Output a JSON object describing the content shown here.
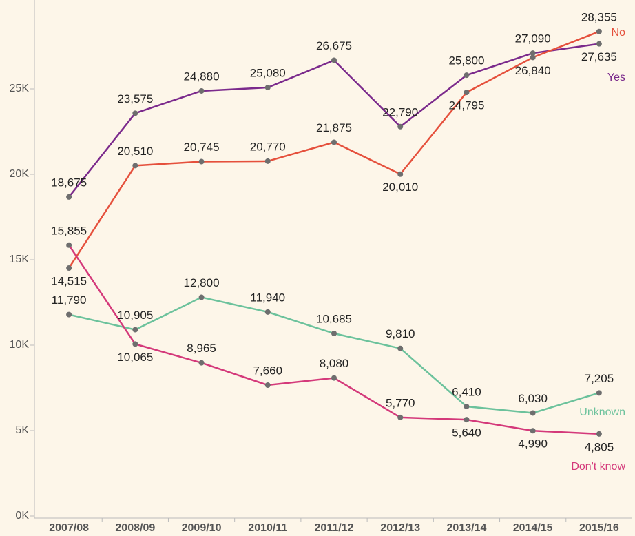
{
  "chart_data": {
    "type": "line",
    "categories": [
      "2007/08",
      "2008/09",
      "2009/10",
      "2010/11",
      "2011/12",
      "2012/13",
      "2013/14",
      "2014/15",
      "2015/16"
    ],
    "ylim": [
      0,
      30000
    ],
    "yticks": [
      {
        "value": 0,
        "label": "0K"
      },
      {
        "value": 5000,
        "label": "5K"
      },
      {
        "value": 10000,
        "label": "10K"
      },
      {
        "value": 15000,
        "label": "15K"
      },
      {
        "value": 20000,
        "label": "20K"
      },
      {
        "value": 25000,
        "label": "25K"
      }
    ],
    "marker_color": "#6e6e6e",
    "series": [
      {
        "name": "Yes",
        "color": "#7b2a8c",
        "values": [
          18675,
          23575,
          24880,
          25080,
          26675,
          22790,
          25800,
          27090,
          27635
        ],
        "value_labels": [
          "18,675",
          "23,575",
          "24,880",
          "25,080",
          "26,675",
          "22,790",
          "25,800",
          "27,090",
          "27,635"
        ]
      },
      {
        "name": "No",
        "color": "#e5503c",
        "values": [
          14515,
          20510,
          20745,
          20770,
          21875,
          20010,
          24795,
          26840,
          28355
        ],
        "value_labels": [
          "14,515",
          "20,510",
          "20,745",
          "20,770",
          "21,875",
          "20,010",
          "24,795",
          "26,840",
          "28,355"
        ]
      },
      {
        "name": "Unknown",
        "color": "#6cc29c",
        "values": [
          11790,
          10905,
          12800,
          11940,
          10685,
          9810,
          6410,
          6030,
          7205
        ],
        "value_labels": [
          "11,790",
          "10,905",
          "12,800",
          "11,940",
          "10,685",
          "9,810",
          "6,410",
          "6,030",
          "7,205"
        ]
      },
      {
        "name": "Don't know",
        "color": "#d4397a",
        "values": [
          15855,
          10065,
          8965,
          7660,
          8080,
          5770,
          5640,
          4990,
          4805
        ],
        "value_labels": [
          "15,855",
          "10,065",
          "8,965",
          "7,660",
          "8,080",
          "5,770",
          "5,640",
          "4,990",
          "4,805"
        ]
      }
    ]
  }
}
